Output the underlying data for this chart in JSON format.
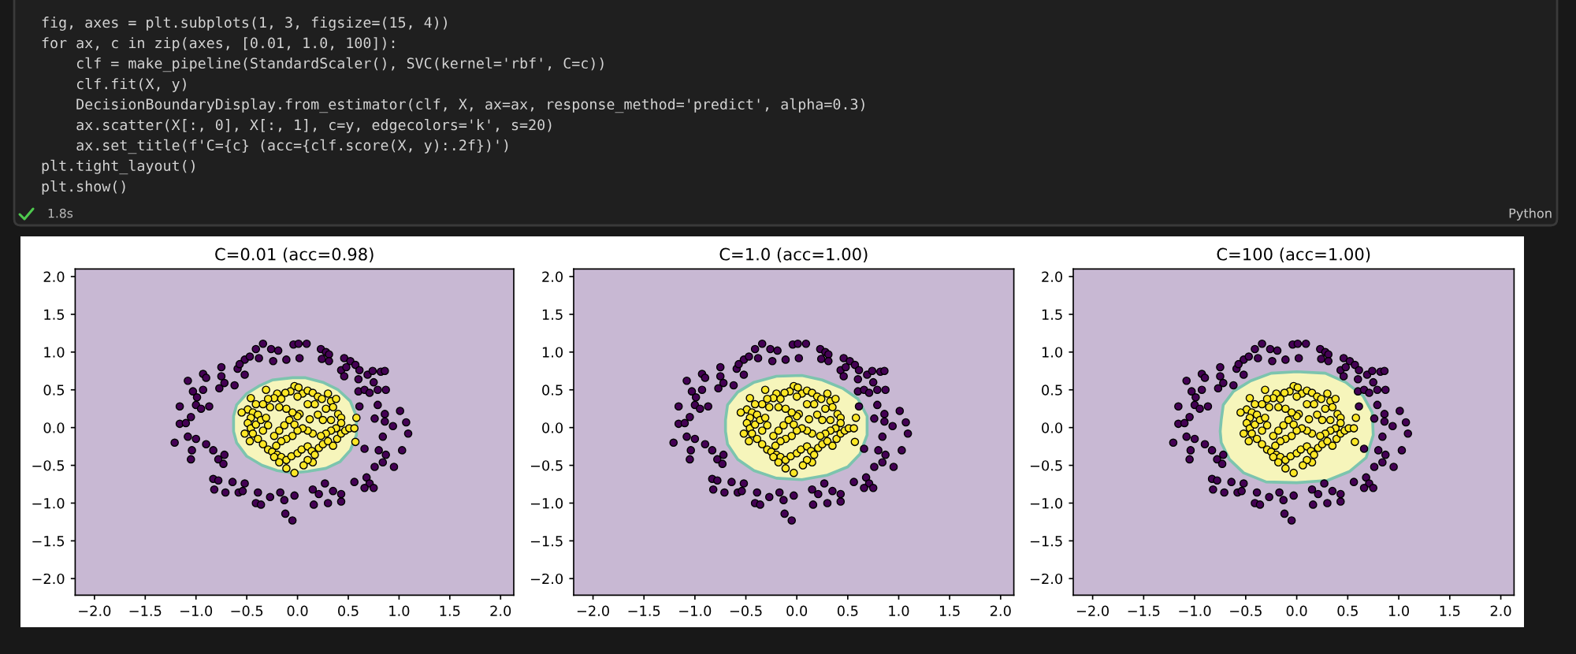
{
  "chart_data": [
    {
      "type": "other",
      "annotations": [
        "fig, axes = plt.subplots(1, 3, figsize=(15, 4))",
        "for ax, c in zip(axes, [0.01, 1.0, 100]):",
        "    clf = make_pipeline(StandardScaler(), SVC(kernel='rbf', C=c))",
        "    clf.fit(X, y)",
        "    DecisionBoundaryDisplay.from_estimator(clf, X, ax=ax, response_method='predict', alpha=0.3)",
        "    ax.scatter(X[:, 0], X[:, 1], c=y, edgecolors='k', s=20)",
        "    ax.set_title(f'C={c} (acc={clf.score(X, y):.2f})')",
        "plt.tight_layout()",
        "plt.show()",
        "1.8s",
        "Python"
      ]
    },
    {
      "type": "scatter",
      "title": "C=0.01 (acc=0.98)",
      "xlim": [
        -2.19,
        2.13
      ],
      "ylim": [
        -2.22,
        2.1
      ],
      "xticks": [
        {
          "value": -2.0,
          "label": "−2.0"
        },
        {
          "value": -1.5,
          "label": "−1.5"
        },
        {
          "value": -1.0,
          "label": "−1.0"
        },
        {
          "value": -0.5,
          "label": "−0.5"
        },
        {
          "value": 0.0,
          "label": "0.0"
        },
        {
          "value": 0.5,
          "label": "0.5"
        },
        {
          "value": 1.0,
          "label": "1.0"
        },
        {
          "value": 1.5,
          "label": "1.5"
        },
        {
          "value": 2.0,
          "label": "2.0"
        }
      ],
      "yticks": [
        {
          "value": -2.0,
          "label": "−2.0"
        },
        {
          "value": -1.5,
          "label": "−1.5"
        },
        {
          "value": -1.0,
          "label": "−1.0"
        },
        {
          "value": -0.5,
          "label": "−0.5"
        },
        {
          "value": 0.0,
          "label": "0.0"
        },
        {
          "value": 0.5,
          "label": "0.5"
        },
        {
          "value": 1.0,
          "label": "1.0"
        },
        {
          "value": 1.5,
          "label": "1.5"
        },
        {
          "value": 2.0,
          "label": "2.0"
        }
      ],
      "bands": [
        {
          "axis": "y",
          "from": -2.22,
          "to": 2.1,
          "color": "#c8b8d3"
        }
      ],
      "series": [
        {
          "type": "area",
          "color": "#f6f5bb",
          "x": [
            -0.63,
            -0.6,
            -0.5,
            -0.38,
            -0.25,
            -0.05,
            0.08,
            0.25,
            0.4,
            0.52,
            0.58,
            0.58,
            0.52,
            0.42,
            0.28,
            0.1,
            -0.05,
            -0.2,
            -0.35,
            -0.5,
            -0.6,
            -0.63
          ],
          "values": [
            0.15,
            0.3,
            0.45,
            0.55,
            0.63,
            0.66,
            0.66,
            0.6,
            0.5,
            0.35,
            0.15,
            -0.1,
            -0.3,
            -0.45,
            -0.54,
            -0.58,
            -0.6,
            -0.57,
            -0.5,
            -0.38,
            -0.2,
            -0.05
          ]
        },
        {
          "type": "scatter",
          "color": "#440154",
          "marker": "circle",
          "x": [
            -0.34,
            -0.04,
            0.01,
            0.09,
            -0.41,
            -0.26,
            -0.19,
            0.23,
            0.28,
            0.31,
            -0.52,
            -0.47,
            -0.38,
            -0.24,
            -0.11,
            0.02,
            0.24,
            0.31,
            0.46,
            0.52,
            0.57,
            -0.75,
            -0.59,
            -0.57,
            0.43,
            0.48,
            0.61,
            0.69,
            0.74,
            0.82,
            0.86,
            -1.08,
            -0.75,
            -0.52,
            0.46,
            0.6,
            0.75,
            -1.03,
            -0.93,
            -0.77,
            -0.62,
            0.6,
            0.66,
            0.71,
            0.79,
            0.87,
            -1.16,
            -1.0,
            -0.95,
            -0.87,
            -0.99,
            0.61,
            0.79,
            1.01,
            0.86,
            -1.16,
            -1.1,
            -1.05,
            0.76,
            0.86,
            0.94,
            1.07,
            -1.21,
            -1.08,
            -1.0,
            -0.9,
            0.66,
            0.84,
            1.09,
            -1.04,
            -0.83,
            -0.72,
            -0.78,
            0.8,
            0.87,
            1.03,
            -1.05,
            -0.73,
            0.84,
            0.95,
            0.76,
            -0.83,
            -0.78,
            -0.64,
            -0.52,
            0.27,
            0.56,
            0.68,
            0.71,
            -0.82,
            -0.71,
            -0.58,
            -0.54,
            -0.39,
            -0.27,
            -0.17,
            -0.03,
            0.15,
            0.21,
            0.35,
            0.43,
            0.66,
            0.75,
            -0.41,
            -0.36,
            -0.13,
            0.16,
            0.3,
            0.43,
            -0.12,
            -0.05,
            -0.93,
            -0.9,
            -0.72
          ],
          "values": [
            1.11,
            1.1,
            1.11,
            1.11,
            1.04,
            1.04,
            1.02,
            1.04,
            1.0,
            0.97,
            0.9,
            0.94,
            0.92,
            0.88,
            0.9,
            0.92,
            0.91,
            0.88,
            0.92,
            0.88,
            0.83,
            0.8,
            0.78,
            0.84,
            0.76,
            0.8,
            0.76,
            0.7,
            0.75,
            0.74,
            0.75,
            0.62,
            0.68,
            0.7,
            0.68,
            0.64,
            0.6,
            0.48,
            0.5,
            0.52,
            0.56,
            0.48,
            0.5,
            0.46,
            0.5,
            0.5,
            0.28,
            0.3,
            0.25,
            0.28,
            0.4,
            0.28,
            0.3,
            0.22,
            0.18,
            0.05,
            0.06,
            0.14,
            0.12,
            0.08,
            0.02,
            0.07,
            -0.2,
            -0.12,
            -0.15,
            -0.22,
            -0.28,
            -0.12,
            -0.08,
            -0.3,
            -0.3,
            -0.36,
            -0.42,
            -0.3,
            -0.36,
            -0.3,
            -0.42,
            -0.48,
            -0.46,
            -0.52,
            -0.52,
            -0.68,
            -0.7,
            -0.72,
            -0.74,
            -0.74,
            -0.72,
            -0.66,
            -0.74,
            -0.82,
            -0.86,
            -0.86,
            -0.84,
            -0.86,
            -0.92,
            -0.86,
            -0.9,
            -0.82,
            -0.88,
            -0.84,
            -0.88,
            -0.8,
            -0.8,
            -1.0,
            -1.02,
            -0.96,
            -1.02,
            -1.0,
            -0.98,
            -1.14,
            -1.23,
            0.71,
            0.66,
            0.59
          ]
        },
        {
          "type": "scatter",
          "color": "#fde725",
          "marker": "circle",
          "x": [
            -0.03,
            0.01,
            -0.07,
            -0.12,
            0.05,
            0.1,
            0.15,
            -0.2,
            -0.23,
            -0.29,
            -0.16,
            0.0,
            0.2,
            0.24,
            0.3,
            0.33,
            0.38,
            0.35,
            0.4,
            0.43,
            0.28,
            0.17,
            0.1,
            0.02,
            0.0,
            -0.05,
            -0.11,
            -0.18,
            -0.27,
            -0.34,
            -0.41,
            -0.46,
            -0.49,
            -0.44,
            -0.39,
            -0.46,
            -0.49,
            -0.46,
            -0.41,
            -0.36,
            -0.31,
            -0.29,
            -0.34,
            -0.44,
            -0.47,
            -0.39,
            -0.34,
            -0.29,
            -0.25,
            -0.2,
            -0.16,
            -0.11,
            -0.06,
            0.0,
            0.04,
            0.1,
            0.14,
            0.17,
            0.21,
            0.25,
            0.3,
            0.35,
            0.39,
            0.43,
            0.47,
            0.51,
            0.56,
            0.43,
            0.38,
            0.33,
            0.28,
            0.23,
            0.15,
            0.1,
            0.05,
            0.0,
            -0.05,
            -0.11,
            -0.16,
            -0.21,
            -0.23,
            -0.18,
            -0.13,
            -0.08,
            -0.03,
            0.12,
            0.2,
            0.25,
            0.33,
            0.15,
            0.1,
            0.06,
            -0.11,
            -0.03,
            0.57,
            0.58,
            -0.55,
            -0.52,
            -0.23,
            -0.31,
            -0.18
          ],
          "values": [
            0.55,
            0.53,
            0.48,
            0.46,
            0.45,
            0.49,
            0.46,
            0.45,
            0.39,
            0.38,
            0.38,
            0.41,
            0.41,
            0.38,
            0.45,
            0.35,
            0.38,
            0.27,
            0.18,
            0.13,
            0.25,
            0.31,
            0.31,
            0.18,
            0.15,
            0.2,
            0.25,
            0.27,
            0.27,
            0.31,
            0.31,
            0.39,
            0.24,
            0.2,
            0.17,
            0.13,
            0.06,
            -0.01,
            0.04,
            0.1,
            0.13,
            0.03,
            -0.04,
            -0.08,
            -0.18,
            -0.15,
            -0.22,
            -0.29,
            -0.32,
            -0.36,
            -0.39,
            -0.43,
            -0.38,
            -0.34,
            -0.29,
            -0.25,
            -0.31,
            -0.36,
            -0.27,
            -0.22,
            -0.18,
            -0.24,
            -0.15,
            -0.08,
            -0.04,
            -0.01,
            -0.01,
            0.06,
            -0.01,
            -0.04,
            -0.08,
            -0.11,
            -0.08,
            -0.04,
            -0.01,
            -0.04,
            -0.11,
            -0.15,
            -0.18,
            -0.24,
            -0.11,
            -0.04,
            0.03,
            0.1,
            0.04,
            0.11,
            0.17,
            0.1,
            0.1,
            -0.46,
            -0.43,
            -0.5,
            -0.54,
            -0.6,
            -0.19,
            0.13,
            0.2,
            -0.08,
            -0.39,
            0.5,
            -0.46
          ]
        }
      ]
    },
    {
      "type": "scatter",
      "title": "C=1.0 (acc=1.00)",
      "xlim": [
        -2.19,
        2.13
      ],
      "ylim": [
        -2.22,
        2.1
      ],
      "xticks": [
        {
          "value": -2.0,
          "label": "−2.0"
        },
        {
          "value": -1.5,
          "label": "−1.5"
        },
        {
          "value": -1.0,
          "label": "−1.0"
        },
        {
          "value": -0.5,
          "label": "−0.5"
        },
        {
          "value": 0.0,
          "label": "0.0"
        },
        {
          "value": 0.5,
          "label": "0.5"
        },
        {
          "value": 1.0,
          "label": "1.0"
        },
        {
          "value": 1.5,
          "label": "1.5"
        },
        {
          "value": 2.0,
          "label": "2.0"
        }
      ],
      "yticks": [
        {
          "value": -2.0,
          "label": "−2.0"
        },
        {
          "value": -1.5,
          "label": "−1.5"
        },
        {
          "value": -1.0,
          "label": "−1.0"
        },
        {
          "value": -0.5,
          "label": "−0.5"
        },
        {
          "value": 0.0,
          "label": "0.0"
        },
        {
          "value": 0.5,
          "label": "0.5"
        },
        {
          "value": 1.0,
          "label": "1.0"
        },
        {
          "value": 1.5,
          "label": "1.5"
        },
        {
          "value": 2.0,
          "label": "2.0"
        }
      ],
      "bands": [
        {
          "axis": "y",
          "from": -2.22,
          "to": 2.1,
          "color": "#c8b8d3"
        }
      ],
      "series": [
        {
          "type": "area",
          "color": "#f6f5bb",
          "x": [
            -0.7,
            -0.68,
            -0.58,
            -0.42,
            -0.2,
            0.05,
            0.25,
            0.45,
            0.6,
            0.69,
            0.69,
            0.62,
            0.5,
            0.3,
            0.05,
            -0.2,
            -0.42,
            -0.58,
            -0.68,
            -0.7
          ],
          "values": [
            0.1,
            0.3,
            0.47,
            0.6,
            0.68,
            0.69,
            0.63,
            0.52,
            0.38,
            0.15,
            -0.1,
            -0.35,
            -0.52,
            -0.63,
            -0.69,
            -0.67,
            -0.57,
            -0.42,
            -0.22,
            -0.05
          ]
        },
        {
          "type": "scatter",
          "color": "#440154",
          "marker": "circle",
          "x": [
            -0.34,
            -0.04,
            0.01,
            0.09,
            -0.41,
            -0.26,
            -0.19,
            0.23,
            0.28,
            0.31,
            -0.52,
            -0.47,
            -0.38,
            -0.24,
            -0.11,
            0.02,
            0.24,
            0.31,
            0.46,
            0.52,
            0.57,
            -0.75,
            -0.59,
            -0.57,
            0.43,
            0.48,
            0.61,
            0.69,
            0.74,
            0.82,
            0.86,
            -1.08,
            -0.75,
            -0.52,
            0.46,
            0.6,
            0.75,
            -1.03,
            -0.93,
            -0.77,
            -0.62,
            0.6,
            0.66,
            0.71,
            0.79,
            0.87,
            -1.16,
            -1.0,
            -0.95,
            -0.87,
            -0.99,
            0.61,
            0.79,
            1.01,
            0.86,
            -1.16,
            -1.1,
            -1.05,
            0.76,
            0.86,
            0.94,
            1.07,
            -1.21,
            -1.08,
            -1.0,
            -0.9,
            0.66,
            0.84,
            1.09,
            -1.04,
            -0.83,
            -0.72,
            -0.78,
            0.8,
            0.87,
            1.03,
            -1.05,
            -0.73,
            0.84,
            0.95,
            0.76,
            -0.83,
            -0.78,
            -0.64,
            -0.52,
            0.27,
            0.56,
            0.68,
            0.71,
            -0.82,
            -0.71,
            -0.58,
            -0.54,
            -0.39,
            -0.27,
            -0.17,
            -0.03,
            0.15,
            0.21,
            0.35,
            0.43,
            0.66,
            0.75,
            -0.41,
            -0.36,
            -0.13,
            0.16,
            0.3,
            0.43,
            -0.12,
            -0.05,
            -0.93,
            -0.9,
            -0.72
          ],
          "values": [
            1.11,
            1.1,
            1.11,
            1.11,
            1.04,
            1.04,
            1.02,
            1.04,
            1.0,
            0.97,
            0.9,
            0.94,
            0.92,
            0.88,
            0.9,
            0.92,
            0.91,
            0.88,
            0.92,
            0.88,
            0.83,
            0.8,
            0.78,
            0.84,
            0.76,
            0.8,
            0.76,
            0.7,
            0.75,
            0.74,
            0.75,
            0.62,
            0.68,
            0.7,
            0.68,
            0.64,
            0.6,
            0.48,
            0.5,
            0.52,
            0.56,
            0.48,
            0.5,
            0.46,
            0.5,
            0.5,
            0.28,
            0.3,
            0.25,
            0.28,
            0.4,
            0.28,
            0.3,
            0.22,
            0.18,
            0.05,
            0.06,
            0.14,
            0.12,
            0.08,
            0.02,
            0.07,
            -0.2,
            -0.12,
            -0.15,
            -0.22,
            -0.28,
            -0.12,
            -0.08,
            -0.3,
            -0.3,
            -0.36,
            -0.42,
            -0.3,
            -0.36,
            -0.3,
            -0.42,
            -0.48,
            -0.46,
            -0.52,
            -0.52,
            -0.68,
            -0.7,
            -0.72,
            -0.74,
            -0.74,
            -0.72,
            -0.66,
            -0.74,
            -0.82,
            -0.86,
            -0.86,
            -0.84,
            -0.86,
            -0.92,
            -0.86,
            -0.9,
            -0.82,
            -0.88,
            -0.84,
            -0.88,
            -0.8,
            -0.8,
            -1.0,
            -1.02,
            -0.96,
            -1.02,
            -1.0,
            -0.98,
            -1.14,
            -1.23,
            0.71,
            0.66,
            0.59
          ]
        },
        {
          "type": "scatter",
          "color": "#fde725",
          "marker": "circle",
          "x": [
            -0.03,
            0.01,
            -0.07,
            -0.12,
            0.05,
            0.1,
            0.15,
            -0.2,
            -0.23,
            -0.29,
            -0.16,
            0.0,
            0.2,
            0.24,
            0.3,
            0.33,
            0.38,
            0.35,
            0.4,
            0.43,
            0.28,
            0.17,
            0.1,
            0.02,
            0.0,
            -0.05,
            -0.11,
            -0.18,
            -0.27,
            -0.34,
            -0.41,
            -0.46,
            -0.49,
            -0.44,
            -0.39,
            -0.46,
            -0.49,
            -0.46,
            -0.41,
            -0.36,
            -0.31,
            -0.29,
            -0.34,
            -0.44,
            -0.47,
            -0.39,
            -0.34,
            -0.29,
            -0.25,
            -0.2,
            -0.16,
            -0.11,
            -0.06,
            0.0,
            0.04,
            0.1,
            0.14,
            0.17,
            0.21,
            0.25,
            0.3,
            0.35,
            0.39,
            0.43,
            0.47,
            0.51,
            0.56,
            0.43,
            0.38,
            0.33,
            0.28,
            0.23,
            0.15,
            0.1,
            0.05,
            0.0,
            -0.05,
            -0.11,
            -0.16,
            -0.21,
            -0.23,
            -0.18,
            -0.13,
            -0.08,
            -0.03,
            0.12,
            0.2,
            0.25,
            0.33,
            0.15,
            0.1,
            0.06,
            -0.11,
            -0.03,
            0.57,
            0.58,
            -0.55,
            -0.52,
            -0.23,
            -0.31,
            -0.18
          ],
          "values": [
            0.55,
            0.53,
            0.48,
            0.46,
            0.45,
            0.49,
            0.46,
            0.45,
            0.39,
            0.38,
            0.38,
            0.41,
            0.41,
            0.38,
            0.45,
            0.35,
            0.38,
            0.27,
            0.18,
            0.13,
            0.25,
            0.31,
            0.31,
            0.18,
            0.15,
            0.2,
            0.25,
            0.27,
            0.27,
            0.31,
            0.31,
            0.39,
            0.24,
            0.2,
            0.17,
            0.13,
            0.06,
            -0.01,
            0.04,
            0.1,
            0.13,
            0.03,
            -0.04,
            -0.08,
            -0.18,
            -0.15,
            -0.22,
            -0.29,
            -0.32,
            -0.36,
            -0.39,
            -0.43,
            -0.38,
            -0.34,
            -0.29,
            -0.25,
            -0.31,
            -0.36,
            -0.27,
            -0.22,
            -0.18,
            -0.24,
            -0.15,
            -0.08,
            -0.04,
            -0.01,
            -0.01,
            0.06,
            -0.01,
            -0.04,
            -0.08,
            -0.11,
            -0.08,
            -0.04,
            -0.01,
            -0.04,
            -0.11,
            -0.15,
            -0.18,
            -0.24,
            -0.11,
            -0.04,
            0.03,
            0.1,
            0.04,
            0.11,
            0.17,
            0.1,
            0.1,
            -0.46,
            -0.43,
            -0.5,
            -0.54,
            -0.6,
            -0.19,
            0.13,
            0.2,
            -0.08,
            -0.39,
            0.5,
            -0.46
          ]
        }
      ]
    },
    {
      "type": "scatter",
      "title": "C=100 (acc=1.00)",
      "xlim": [
        -2.19,
        2.13
      ],
      "ylim": [
        -2.22,
        2.1
      ],
      "xticks": [
        {
          "value": -2.0,
          "label": "−2.0"
        },
        {
          "value": -1.5,
          "label": "−1.5"
        },
        {
          "value": -1.0,
          "label": "−1.0"
        },
        {
          "value": -0.5,
          "label": "−0.5"
        },
        {
          "value": 0.0,
          "label": "0.0"
        },
        {
          "value": 0.5,
          "label": "0.5"
        },
        {
          "value": 1.0,
          "label": "1.0"
        },
        {
          "value": 1.5,
          "label": "1.5"
        },
        {
          "value": 2.0,
          "label": "2.0"
        }
      ],
      "yticks": [
        {
          "value": -2.0,
          "label": "−2.0"
        },
        {
          "value": -1.5,
          "label": "−1.5"
        },
        {
          "value": -1.0,
          "label": "−1.0"
        },
        {
          "value": -0.5,
          "label": "−0.5"
        },
        {
          "value": 0.0,
          "label": "0.0"
        },
        {
          "value": 0.5,
          "label": "0.5"
        },
        {
          "value": 1.0,
          "label": "1.0"
        },
        {
          "value": 1.5,
          "label": "1.5"
        },
        {
          "value": 2.0,
          "label": "2.0"
        }
      ],
      "bands": [
        {
          "axis": "y",
          "from": -2.22,
          "to": 2.1,
          "color": "#c8b8d3"
        }
      ],
      "series": [
        {
          "type": "area",
          "color": "#f6f5bb",
          "x": [
            -0.74,
            -0.72,
            -0.62,
            -0.45,
            -0.25,
            0.0,
            0.28,
            0.48,
            0.65,
            0.74,
            0.75,
            0.68,
            0.52,
            0.3,
            0.0,
            -0.3,
            -0.52,
            -0.66,
            -0.74,
            -0.75
          ],
          "values": [
            0.1,
            0.3,
            0.48,
            0.62,
            0.72,
            0.74,
            0.72,
            0.6,
            0.42,
            0.2,
            -0.1,
            -0.4,
            -0.58,
            -0.7,
            -0.73,
            -0.72,
            -0.6,
            -0.42,
            -0.2,
            -0.05
          ]
        },
        {
          "type": "scatter",
          "color": "#440154",
          "marker": "circle",
          "x": [
            -0.34,
            -0.04,
            0.01,
            0.09,
            -0.41,
            -0.26,
            -0.19,
            0.23,
            0.28,
            0.31,
            -0.52,
            -0.47,
            -0.38,
            -0.24,
            -0.11,
            0.02,
            0.24,
            0.31,
            0.46,
            0.52,
            0.57,
            -0.75,
            -0.59,
            -0.57,
            0.43,
            0.48,
            0.61,
            0.69,
            0.74,
            0.82,
            0.86,
            -1.08,
            -0.75,
            -0.52,
            0.46,
            0.6,
            0.75,
            -1.03,
            -0.93,
            -0.77,
            -0.62,
            0.6,
            0.66,
            0.71,
            0.79,
            0.87,
            -1.16,
            -1.0,
            -0.95,
            -0.87,
            -0.99,
            0.61,
            0.79,
            1.01,
            0.86,
            -1.16,
            -1.1,
            -1.05,
            0.76,
            0.86,
            0.94,
            1.07,
            -1.21,
            -1.08,
            -1.0,
            -0.9,
            0.66,
            0.84,
            1.09,
            -1.04,
            -0.83,
            -0.72,
            -0.78,
            0.8,
            0.87,
            1.03,
            -1.05,
            -0.73,
            0.84,
            0.95,
            0.76,
            -0.83,
            -0.78,
            -0.64,
            -0.52,
            0.27,
            0.56,
            0.68,
            0.71,
            -0.82,
            -0.71,
            -0.58,
            -0.54,
            -0.39,
            -0.27,
            -0.17,
            -0.03,
            0.15,
            0.21,
            0.35,
            0.43,
            0.66,
            0.75,
            -0.41,
            -0.36,
            -0.13,
            0.16,
            0.3,
            0.43,
            -0.12,
            -0.05,
            -0.93,
            -0.9,
            -0.72
          ],
          "values": [
            1.11,
            1.1,
            1.11,
            1.11,
            1.04,
            1.04,
            1.02,
            1.04,
            1.0,
            0.97,
            0.9,
            0.94,
            0.92,
            0.88,
            0.9,
            0.92,
            0.91,
            0.88,
            0.92,
            0.88,
            0.83,
            0.8,
            0.78,
            0.84,
            0.76,
            0.8,
            0.76,
            0.7,
            0.75,
            0.74,
            0.75,
            0.62,
            0.68,
            0.7,
            0.68,
            0.64,
            0.6,
            0.48,
            0.5,
            0.52,
            0.56,
            0.48,
            0.5,
            0.46,
            0.5,
            0.5,
            0.28,
            0.3,
            0.25,
            0.28,
            0.4,
            0.28,
            0.3,
            0.22,
            0.18,
            0.05,
            0.06,
            0.14,
            0.12,
            0.08,
            0.02,
            0.07,
            -0.2,
            -0.12,
            -0.15,
            -0.22,
            -0.28,
            -0.12,
            -0.08,
            -0.3,
            -0.3,
            -0.36,
            -0.42,
            -0.3,
            -0.36,
            -0.3,
            -0.42,
            -0.48,
            -0.46,
            -0.52,
            -0.52,
            -0.68,
            -0.7,
            -0.72,
            -0.74,
            -0.74,
            -0.72,
            -0.66,
            -0.74,
            -0.82,
            -0.86,
            -0.86,
            -0.84,
            -0.86,
            -0.92,
            -0.86,
            -0.9,
            -0.82,
            -0.88,
            -0.84,
            -0.88,
            -0.8,
            -0.8,
            -1.0,
            -1.02,
            -0.96,
            -1.02,
            -1.0,
            -0.98,
            -1.14,
            -1.23,
            0.71,
            0.66,
            0.59
          ]
        },
        {
          "type": "scatter",
          "color": "#fde725",
          "marker": "circle",
          "x": [
            -0.03,
            0.01,
            -0.07,
            -0.12,
            0.05,
            0.1,
            0.15,
            -0.2,
            -0.23,
            -0.29,
            -0.16,
            0.0,
            0.2,
            0.24,
            0.3,
            0.33,
            0.38,
            0.35,
            0.4,
            0.43,
            0.28,
            0.17,
            0.1,
            0.02,
            0.0,
            -0.05,
            -0.11,
            -0.18,
            -0.27,
            -0.34,
            -0.41,
            -0.46,
            -0.49,
            -0.44,
            -0.39,
            -0.46,
            -0.49,
            -0.46,
            -0.41,
            -0.36,
            -0.31,
            -0.29,
            -0.34,
            -0.44,
            -0.47,
            -0.39,
            -0.34,
            -0.29,
            -0.25,
            -0.2,
            -0.16,
            -0.11,
            -0.06,
            0.0,
            0.04,
            0.1,
            0.14,
            0.17,
            0.21,
            0.25,
            0.3,
            0.35,
            0.39,
            0.43,
            0.47,
            0.51,
            0.56,
            0.43,
            0.38,
            0.33,
            0.28,
            0.23,
            0.15,
            0.1,
            0.05,
            0.0,
            -0.05,
            -0.11,
            -0.16,
            -0.21,
            -0.23,
            -0.18,
            -0.13,
            -0.08,
            -0.03,
            0.12,
            0.2,
            0.25,
            0.33,
            0.15,
            0.1,
            0.06,
            -0.11,
            -0.03,
            0.57,
            0.58,
            -0.55,
            -0.52,
            -0.23,
            -0.31,
            -0.18
          ],
          "values": [
            0.55,
            0.53,
            0.48,
            0.46,
            0.45,
            0.49,
            0.46,
            0.45,
            0.39,
            0.38,
            0.38,
            0.41,
            0.41,
            0.38,
            0.45,
            0.35,
            0.38,
            0.27,
            0.18,
            0.13,
            0.25,
            0.31,
            0.31,
            0.18,
            0.15,
            0.2,
            0.25,
            0.27,
            0.27,
            0.31,
            0.31,
            0.39,
            0.24,
            0.2,
            0.17,
            0.13,
            0.06,
            -0.01,
            0.04,
            0.1,
            0.13,
            0.03,
            -0.04,
            -0.08,
            -0.18,
            -0.15,
            -0.22,
            -0.29,
            -0.32,
            -0.36,
            -0.39,
            -0.43,
            -0.38,
            -0.34,
            -0.29,
            -0.25,
            -0.31,
            -0.36,
            -0.27,
            -0.22,
            -0.18,
            -0.24,
            -0.15,
            -0.08,
            -0.04,
            -0.01,
            -0.01,
            0.06,
            -0.01,
            -0.04,
            -0.08,
            -0.11,
            -0.08,
            -0.04,
            -0.01,
            -0.04,
            -0.11,
            -0.15,
            -0.18,
            -0.24,
            -0.11,
            -0.04,
            0.03,
            0.1,
            0.04,
            0.11,
            0.17,
            0.1,
            0.1,
            -0.46,
            -0.43,
            -0.5,
            -0.54,
            -0.6,
            -0.19,
            0.13,
            0.2,
            -0.08,
            -0.39,
            0.5,
            -0.46
          ]
        }
      ]
    }
  ]
}
